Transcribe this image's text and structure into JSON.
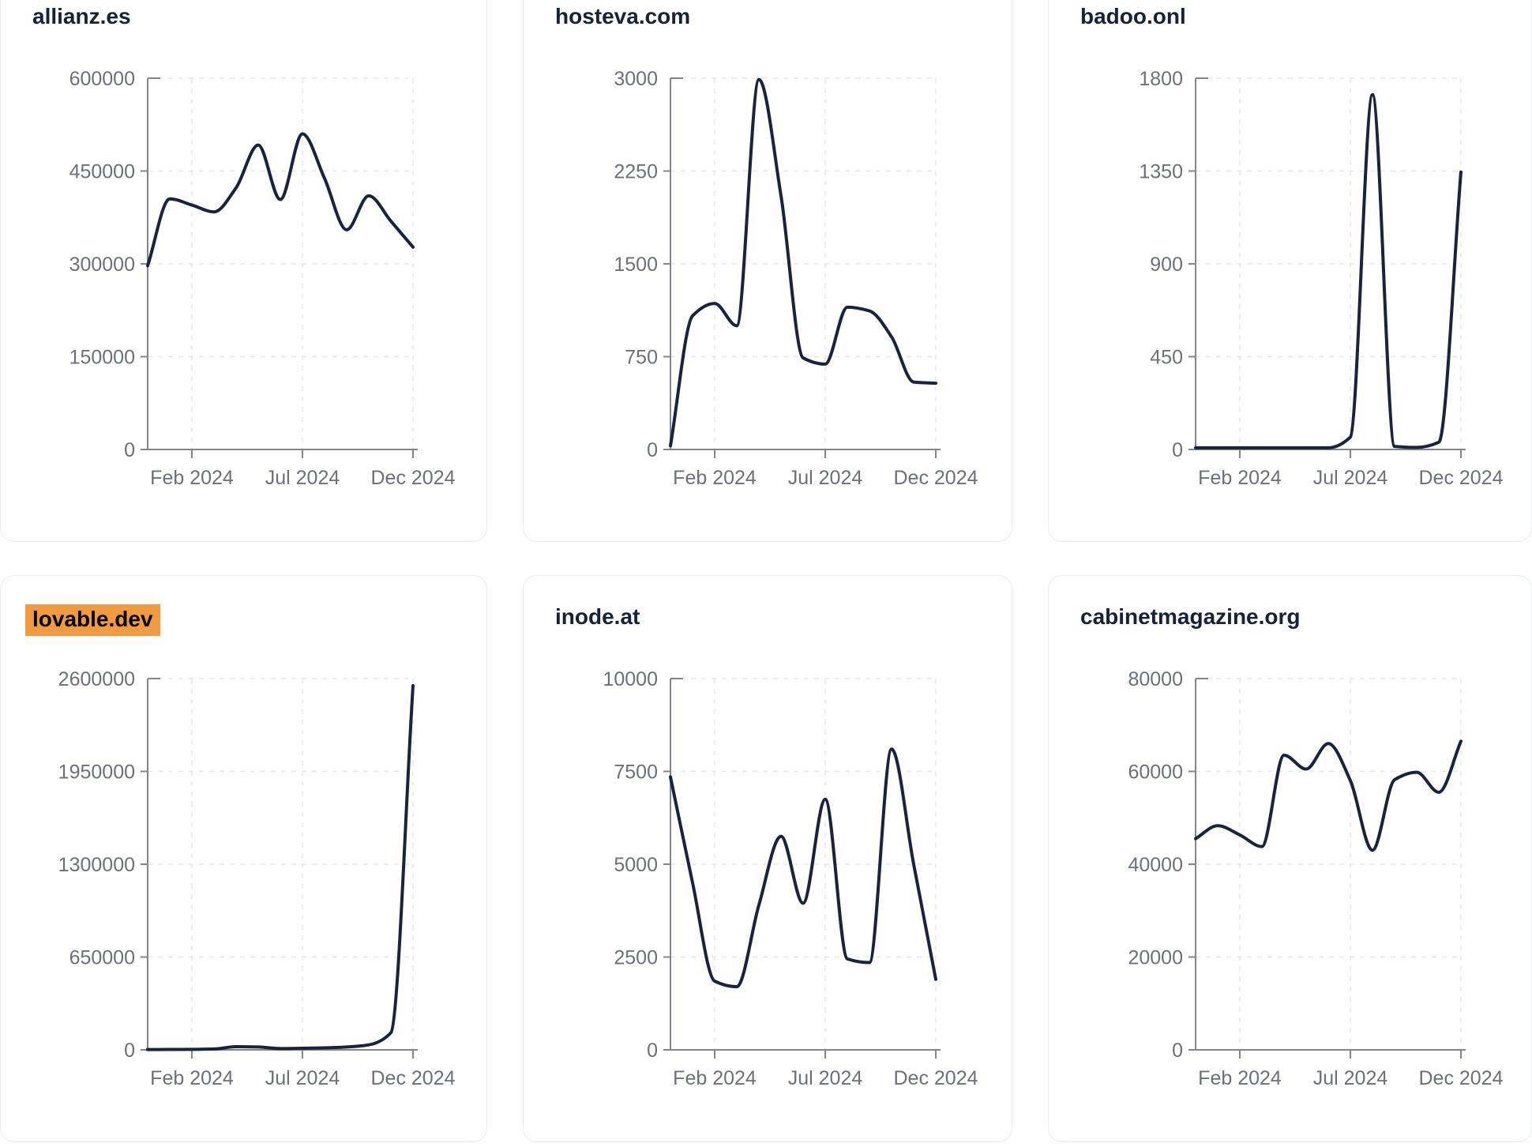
{
  "colors": {
    "background": "#ffffff",
    "card_border": "#e9ecf2",
    "title_text": "#18213a",
    "highlight_background": "#f09b40",
    "highlight_text": "#000000",
    "series_line": "#1b2240",
    "axis": "#83878d",
    "grid": "#e7e8ec",
    "tick_label": "#6d7078"
  },
  "chart_data": [
    {
      "type": "line",
      "title": "allianz.es",
      "highlighted": false,
      "x": [
        "Dec 2023",
        "Jan 2024",
        "Feb 2024",
        "Mar 2024",
        "Apr 2024",
        "May 2024",
        "Jun 2024",
        "Jul 2024",
        "Aug 2024",
        "Sep 2024",
        "Oct 2024",
        "Nov 2024",
        "Dec 2024"
      ],
      "values": [
        297000,
        405000,
        395000,
        384000,
        423000,
        492000,
        404000,
        510000,
        438000,
        355000,
        410000,
        369000,
        327000
      ],
      "ylim": [
        0,
        600000
      ],
      "y_ticks": [
        0,
        150000,
        300000,
        450000,
        600000
      ],
      "y_tick_labels": [
        "0",
        "150000",
        "300000",
        "450000",
        "600000"
      ],
      "x_tick_labels": [
        "Feb 2024",
        "Jul 2024",
        "Dec 2024"
      ],
      "grid": true,
      "legend": false
    },
    {
      "type": "line",
      "title": "hosteva.com",
      "highlighted": false,
      "x": [
        "Dec 2023",
        "Jan 2024",
        "Feb 2024",
        "Mar 2024",
        "Apr 2024",
        "May 2024",
        "Jun 2024",
        "Jul 2024",
        "Aug 2024",
        "Sep 2024",
        "Oct 2024",
        "Nov 2024",
        "Dec 2024"
      ],
      "values": [
        30,
        1080,
        1180,
        1000,
        2990,
        2050,
        740,
        690,
        1150,
        1120,
        910,
        545,
        535
      ],
      "ylim": [
        0,
        3000
      ],
      "y_ticks": [
        0,
        750,
        1500,
        2250,
        3000
      ],
      "y_tick_labels": [
        "0",
        "750",
        "1500",
        "2250",
        "3000"
      ],
      "x_tick_labels": [
        "Feb 2024",
        "Jul 2024",
        "Dec 2024"
      ],
      "grid": true,
      "legend": false
    },
    {
      "type": "line",
      "title": "badoo.onl",
      "highlighted": false,
      "x": [
        "Dec 2023",
        "Jan 2024",
        "Feb 2024",
        "Mar 2024",
        "Apr 2024",
        "May 2024",
        "Jun 2024",
        "Jul 2024",
        "Aug 2024",
        "Sep 2024",
        "Oct 2024",
        "Nov 2024",
        "Dec 2024"
      ],
      "values": [
        8,
        8,
        8,
        8,
        8,
        8,
        8,
        60,
        1720,
        15,
        10,
        35,
        1345
      ],
      "ylim": [
        0,
        1800
      ],
      "y_ticks": [
        0,
        450,
        900,
        1350,
        1800
      ],
      "y_tick_labels": [
        "0",
        "450",
        "900",
        "1350",
        "1800"
      ],
      "x_tick_labels": [
        "Feb 2024",
        "Jul 2024",
        "Dec 2024"
      ],
      "grid": true,
      "legend": false
    },
    {
      "type": "line",
      "title": "lovable.dev",
      "highlighted": true,
      "x": [
        "Dec 2023",
        "Jan 2024",
        "Feb 2024",
        "Mar 2024",
        "Apr 2024",
        "May 2024",
        "Jun 2024",
        "Jul 2024",
        "Aug 2024",
        "Sep 2024",
        "Oct 2024",
        "Nov 2024",
        "Dec 2024"
      ],
      "values": [
        2000,
        2500,
        3500,
        6000,
        22000,
        20000,
        9000,
        11000,
        14000,
        20000,
        35000,
        120000,
        2550000
      ],
      "ylim": [
        0,
        2600000
      ],
      "y_ticks": [
        0,
        650000,
        1300000,
        1950000,
        2600000
      ],
      "y_tick_labels": [
        "0",
        "650000",
        "1300000",
        "1950000",
        "2600000"
      ],
      "x_tick_labels": [
        "Feb 2024",
        "Jul 2024",
        "Dec 2024"
      ],
      "grid": true,
      "legend": false
    },
    {
      "type": "line",
      "title": "inode.at",
      "highlighted": false,
      "x": [
        "Dec 2023",
        "Jan 2024",
        "Feb 2024",
        "Mar 2024",
        "Apr 2024",
        "May 2024",
        "Jun 2024",
        "Jul 2024",
        "Aug 2024",
        "Sep 2024",
        "Oct 2024",
        "Nov 2024",
        "Dec 2024"
      ],
      "values": [
        7350,
        4500,
        1850,
        1700,
        3900,
        5750,
        3950,
        6750,
        2450,
        2350,
        8100,
        5000,
        1900
      ],
      "ylim": [
        0,
        10000
      ],
      "y_ticks": [
        0,
        2500,
        5000,
        7500,
        10000
      ],
      "y_tick_labels": [
        "0",
        "2500",
        "5000",
        "7500",
        "10000"
      ],
      "x_tick_labels": [
        "Feb 2024",
        "Jul 2024",
        "Dec 2024"
      ],
      "grid": true,
      "legend": false
    },
    {
      "type": "line",
      "title": "cabinetmagazine.org",
      "highlighted": false,
      "x": [
        "Dec 2023",
        "Jan 2024",
        "Feb 2024",
        "Mar 2024",
        "Apr 2024",
        "May 2024",
        "Jun 2024",
        "Jul 2024",
        "Aug 2024",
        "Sep 2024",
        "Oct 2024",
        "Nov 2024",
        "Dec 2024"
      ],
      "values": [
        45500,
        48300,
        46300,
        43800,
        63500,
        60500,
        66000,
        58000,
        43000,
        58200,
        59800,
        55500,
        66500
      ],
      "ylim": [
        0,
        80000
      ],
      "y_ticks": [
        0,
        20000,
        40000,
        60000,
        80000
      ],
      "y_tick_labels": [
        "0",
        "20000",
        "40000",
        "60000",
        "80000"
      ],
      "x_tick_labels": [
        "Feb 2024",
        "Jul 2024",
        "Dec 2024"
      ],
      "grid": true,
      "legend": false
    }
  ]
}
